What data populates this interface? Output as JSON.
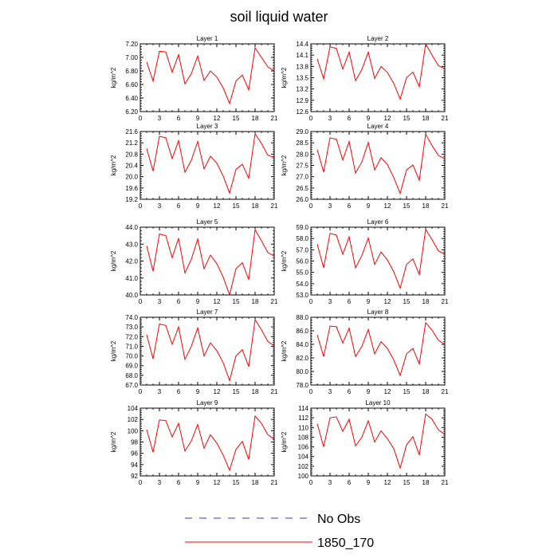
{
  "title": "soil liquid water",
  "legend": [
    {
      "name": "No Obs",
      "color": "#3a3ad0",
      "style": "dashed"
    },
    {
      "name": "1850_170",
      "color": "#ff0000",
      "style": "solid"
    }
  ],
  "line_color": "#ff0000",
  "chart_data": [
    {
      "type": "line",
      "title": "Layer 1",
      "ylabel": "kg/m^2",
      "ylim": [
        6.2,
        7.2
      ],
      "yticks": [
        "6.20",
        "6.40",
        "6.60",
        "6.80",
        "7.00",
        "7.20"
      ],
      "xlim": [
        0,
        21
      ],
      "xticks": [
        0,
        3,
        6,
        9,
        12,
        15,
        18,
        21
      ],
      "x": [
        1,
        2,
        3,
        4,
        5,
        6,
        7,
        8,
        9,
        10,
        11,
        12,
        13,
        14,
        15,
        16,
        17,
        18,
        19,
        20,
        21
      ],
      "series": [
        {
          "name": "1850_170",
          "values": [
            6.93,
            6.65,
            7.09,
            7.08,
            6.78,
            7.04,
            6.61,
            6.76,
            7.02,
            6.66,
            6.8,
            6.71,
            6.55,
            6.32,
            6.65,
            6.74,
            6.52,
            7.14,
            7.0,
            6.86,
            6.8
          ]
        }
      ]
    },
    {
      "type": "line",
      "title": "Layer 2",
      "ylabel": "kg/m^2",
      "ylim": [
        12.6,
        14.4
      ],
      "yticks": [
        "12.6",
        "12.9",
        "13.2",
        "13.5",
        "13.8",
        "14.1",
        "14.4"
      ],
      "xlim": [
        0,
        21
      ],
      "xticks": [
        0,
        3,
        6,
        9,
        12,
        15,
        18,
        21
      ],
      "x": [
        1,
        2,
        3,
        4,
        5,
        6,
        7,
        8,
        9,
        10,
        11,
        12,
        13,
        14,
        15,
        16,
        17,
        18,
        19,
        20,
        21
      ],
      "series": [
        {
          "name": "1850_170",
          "values": [
            14.0,
            13.47,
            14.32,
            14.28,
            13.73,
            14.18,
            13.42,
            13.72,
            14.18,
            13.48,
            13.8,
            13.64,
            13.35,
            12.93,
            13.5,
            13.65,
            13.26,
            14.4,
            14.1,
            13.82,
            13.74
          ]
        }
      ]
    },
    {
      "type": "line",
      "title": "Layer 3",
      "ylabel": "kg/m^2",
      "ylim": [
        19.2,
        21.6
      ],
      "yticks": [
        "19.2",
        "19.6",
        "20.0",
        "20.4",
        "20.8",
        "21.2",
        "21.6"
      ],
      "xlim": [
        0,
        21
      ],
      "xticks": [
        0,
        3,
        6,
        9,
        12,
        15,
        18,
        21
      ],
      "x": [
        1,
        2,
        3,
        4,
        5,
        6,
        7,
        8,
        9,
        10,
        11,
        12,
        13,
        14,
        15,
        16,
        17,
        18,
        19,
        20,
        21
      ],
      "series": [
        {
          "name": "1850_170",
          "values": [
            21.0,
            20.2,
            21.43,
            21.38,
            20.64,
            21.28,
            20.16,
            20.58,
            21.25,
            20.28,
            20.72,
            20.48,
            20.02,
            19.42,
            20.26,
            20.44,
            19.94,
            21.52,
            21.18,
            20.76,
            20.68
          ]
        }
      ]
    },
    {
      "type": "line",
      "title": "Layer 4",
      "ylabel": "kg/m^2",
      "ylim": [
        26.0,
        29.0
      ],
      "yticks": [
        "26.0",
        "26.5",
        "27.0",
        "27.5",
        "28.0",
        "28.5",
        "29.0"
      ],
      "xlim": [
        0,
        21
      ],
      "xticks": [
        0,
        3,
        6,
        9,
        12,
        15,
        18,
        21
      ],
      "x": [
        1,
        2,
        3,
        4,
        5,
        6,
        7,
        8,
        9,
        10,
        11,
        12,
        13,
        14,
        15,
        16,
        17,
        18,
        19,
        20,
        21
      ],
      "series": [
        {
          "name": "1850_170",
          "values": [
            28.2,
            27.2,
            28.72,
            28.66,
            27.74,
            28.56,
            27.16,
            27.66,
            28.52,
            27.3,
            27.84,
            27.54,
            26.96,
            26.26,
            27.3,
            27.52,
            26.84,
            28.88,
            28.38,
            27.94,
            27.8
          ]
        }
      ]
    },
    {
      "type": "line",
      "title": "Layer 5",
      "ylabel": "kg/m^2",
      "ylim": [
        40.0,
        44.0
      ],
      "yticks": [
        "40.0",
        "41.0",
        "42.0",
        "43.0",
        "44.0"
      ],
      "xlim": [
        0,
        21
      ],
      "xticks": [
        0,
        3,
        6,
        9,
        12,
        15,
        18,
        21
      ],
      "x": [
        1,
        2,
        3,
        4,
        5,
        6,
        7,
        8,
        9,
        10,
        11,
        12,
        13,
        14,
        15,
        16,
        17,
        18,
        19,
        20,
        21
      ],
      "series": [
        {
          "name": "1850_170",
          "values": [
            42.9,
            41.4,
            43.6,
            43.5,
            42.2,
            43.35,
            41.3,
            42.1,
            43.3,
            41.55,
            42.35,
            41.85,
            41.05,
            40.0,
            41.55,
            41.9,
            40.9,
            43.85,
            43.2,
            42.5,
            42.3
          ]
        }
      ]
    },
    {
      "type": "line",
      "title": "Layer 6",
      "ylabel": "kg/m^2",
      "ylim": [
        53.0,
        59.0
      ],
      "yticks": [
        "53.0",
        "54.0",
        "55.0",
        "56.0",
        "57.0",
        "58.0",
        "59.0"
      ],
      "xlim": [
        0,
        21
      ],
      "xticks": [
        0,
        3,
        6,
        9,
        12,
        15,
        18,
        21
      ],
      "x": [
        1,
        2,
        3,
        4,
        5,
        6,
        7,
        8,
        9,
        10,
        11,
        12,
        13,
        14,
        15,
        16,
        17,
        18,
        19,
        20,
        21
      ],
      "series": [
        {
          "name": "1850_170",
          "values": [
            57.5,
            55.4,
            58.45,
            58.3,
            56.6,
            58.15,
            55.4,
            56.5,
            58.05,
            55.7,
            56.8,
            56.1,
            55.05,
            53.6,
            55.7,
            56.2,
            54.8,
            58.8,
            57.9,
            56.9,
            56.6
          ]
        }
      ]
    },
    {
      "type": "line",
      "title": "Layer 7",
      "ylabel": "kg/m^2",
      "ylim": [
        67.0,
        74.0
      ],
      "yticks": [
        "67.0",
        "68.0",
        "69.0",
        "70.0",
        "71.0",
        "72.0",
        "73.0",
        "74.0"
      ],
      "xlim": [
        0,
        21
      ],
      "xticks": [
        0,
        3,
        6,
        9,
        12,
        15,
        18,
        21
      ],
      "x": [
        1,
        2,
        3,
        4,
        5,
        6,
        7,
        8,
        9,
        10,
        11,
        12,
        13,
        14,
        15,
        16,
        17,
        18,
        19,
        20,
        21
      ],
      "series": [
        {
          "name": "1850_170",
          "values": [
            72.2,
            69.7,
            73.3,
            73.15,
            71.2,
            73.0,
            69.65,
            71.0,
            72.9,
            70.0,
            71.35,
            70.55,
            69.3,
            67.45,
            70.0,
            70.65,
            68.9,
            73.75,
            72.7,
            71.5,
            71.05
          ]
        }
      ]
    },
    {
      "type": "line",
      "title": "Layer 8",
      "ylabel": "kg/m^2",
      "ylim": [
        78.0,
        88.0
      ],
      "yticks": [
        "78.0",
        "80.0",
        "82.0",
        "84.0",
        "86.0",
        "88.0"
      ],
      "xlim": [
        0,
        21
      ],
      "xticks": [
        0,
        3,
        6,
        9,
        12,
        15,
        18,
        21
      ],
      "x": [
        1,
        2,
        3,
        4,
        5,
        6,
        7,
        8,
        9,
        10,
        11,
        12,
        13,
        14,
        15,
        16,
        17,
        18,
        19,
        20,
        21
      ],
      "series": [
        {
          "name": "1850_170",
          "values": [
            85.4,
            82.2,
            86.7,
            86.6,
            84.2,
            86.4,
            82.2,
            83.7,
            86.2,
            82.6,
            84.4,
            83.4,
            81.7,
            79.4,
            82.6,
            83.4,
            81.1,
            87.2,
            86.1,
            84.6,
            84.0
          ]
        }
      ]
    },
    {
      "type": "line",
      "title": "Layer 9",
      "ylabel": "kg/m^2",
      "ylim": [
        92,
        104
      ],
      "yticks": [
        "92",
        "94",
        "96",
        "98",
        "100",
        "102",
        "104"
      ],
      "xlim": [
        0,
        21
      ],
      "xticks": [
        0,
        3,
        6,
        9,
        12,
        15,
        18,
        21
      ],
      "x": [
        1,
        2,
        3,
        4,
        5,
        6,
        7,
        8,
        9,
        10,
        11,
        12,
        13,
        14,
        15,
        16,
        17,
        18,
        19,
        20,
        21
      ],
      "series": [
        {
          "name": "1850_170",
          "values": [
            100.2,
            96.2,
            101.9,
            101.8,
            98.9,
            101.3,
            96.4,
            98.2,
            101.1,
            96.9,
            99.3,
            97.8,
            95.7,
            93.0,
            96.7,
            98.1,
            94.9,
            102.6,
            101.3,
            99.3,
            98.5
          ]
        }
      ]
    },
    {
      "type": "line",
      "title": "Layer 10",
      "ylabel": "kg/m^2",
      "ylim": [
        100,
        114
      ],
      "yticks": [
        "100",
        "102",
        "104",
        "106",
        "108",
        "110",
        "112",
        "114"
      ],
      "xlim": [
        0,
        21
      ],
      "xticks": [
        0,
        3,
        6,
        9,
        12,
        15,
        18,
        21
      ],
      "x": [
        1,
        2,
        3,
        4,
        5,
        6,
        7,
        8,
        9,
        10,
        11,
        12,
        13,
        14,
        15,
        16,
        17,
        18,
        19,
        20,
        21
      ],
      "series": [
        {
          "name": "1850_170",
          "values": [
            110.8,
            106.0,
            112.0,
            112.2,
            109.2,
            111.7,
            106.2,
            108.0,
            111.4,
            107.0,
            109.3,
            107.7,
            105.6,
            101.6,
            106.4,
            108.1,
            104.3,
            112.8,
            111.7,
            109.5,
            108.6
          ]
        }
      ]
    }
  ]
}
